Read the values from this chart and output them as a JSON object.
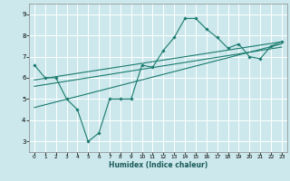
{
  "xlabel": "Humidex (Indice chaleur)",
  "background_color": "#cce8ec",
  "line_color": "#1a7a6e",
  "grid_color": "#ffffff",
  "xlim": [
    -0.5,
    23.5
  ],
  "ylim": [
    2.5,
    9.5
  ],
  "xticks": [
    0,
    1,
    2,
    3,
    4,
    5,
    6,
    7,
    8,
    9,
    10,
    11,
    12,
    13,
    14,
    15,
    16,
    17,
    18,
    19,
    20,
    21,
    22,
    23
  ],
  "yticks": [
    3,
    4,
    5,
    6,
    7,
    8,
    9
  ],
  "main_x": [
    0,
    1,
    2,
    3,
    4,
    5,
    6,
    7,
    8,
    9,
    10,
    11,
    12,
    13,
    14,
    15,
    16,
    17,
    18,
    19,
    20,
    21,
    22,
    23
  ],
  "main_y": [
    6.6,
    6.0,
    6.0,
    5.0,
    4.5,
    3.0,
    3.4,
    5.0,
    5.0,
    5.0,
    6.6,
    6.5,
    7.3,
    7.9,
    8.8,
    8.8,
    8.3,
    7.9,
    7.4,
    7.6,
    7.0,
    6.9,
    7.5,
    7.7
  ],
  "line1_x": [
    0,
    23
  ],
  "line1_y": [
    5.9,
    7.7
  ],
  "line2_x": [
    0,
    23
  ],
  "line2_y": [
    5.6,
    7.45
  ],
  "line3_x": [
    0,
    23
  ],
  "line3_y": [
    4.6,
    7.6
  ]
}
